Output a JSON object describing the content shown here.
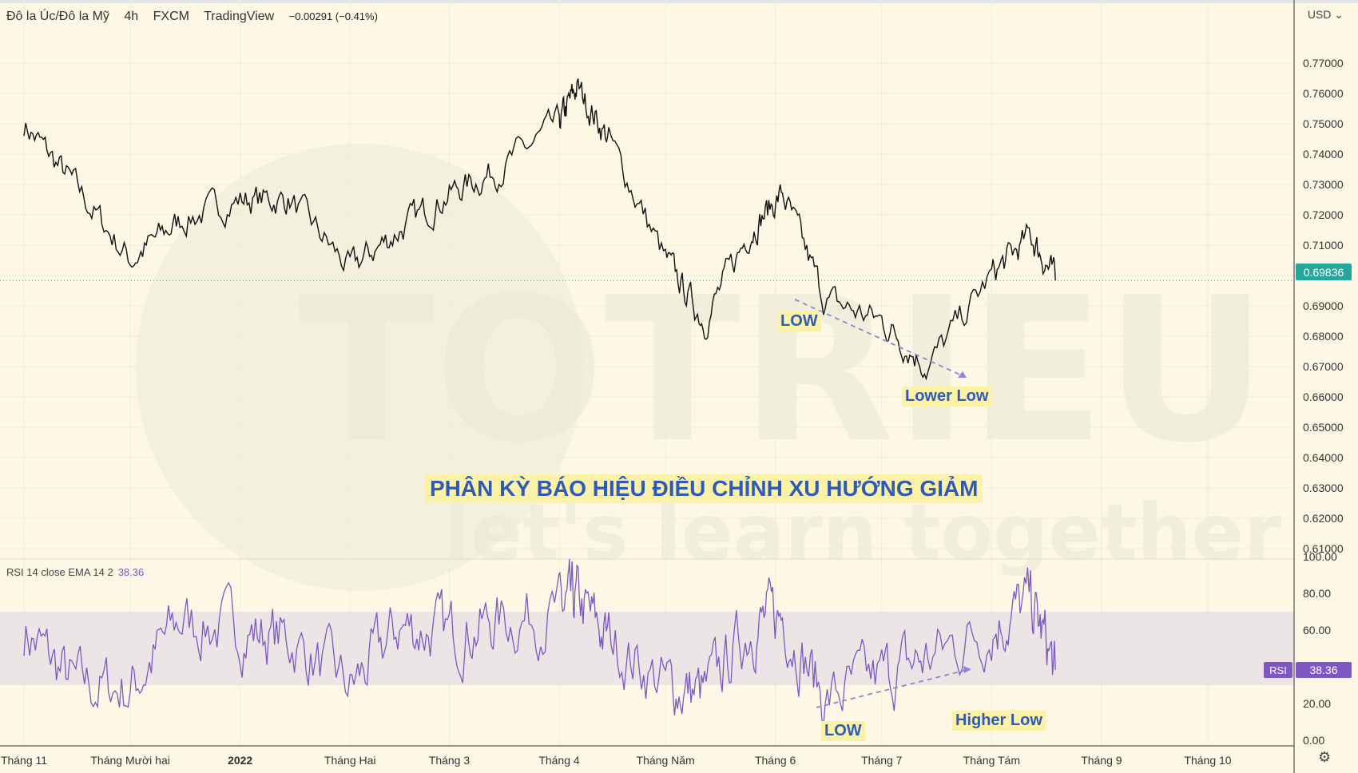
{
  "header": {
    "symbol": "Đô la Úc/Đô la Mỹ",
    "interval": "4h",
    "exchange": "FXCM",
    "source": "TradingView",
    "change": "−0.00291 (−0.41%)"
  },
  "currency_label": "USD",
  "rsi_header": {
    "label": "RSI 14 close EMA 14 2",
    "value": "38.36"
  },
  "annotations": {
    "low_price": "LOW",
    "lower_low": "Lower Low",
    "low_rsi": "LOW",
    "higher_low": "Higher Low",
    "title": "PHÂN KỲ BÁO HIỆU ĐIỀU CHỈNH XU HƯỚNG GIẢM"
  },
  "watermark": {
    "brand": "TOTRIEU",
    "slogan": "let's learn together"
  },
  "colors": {
    "background": "#fdf8e6",
    "price_line": "#111111",
    "rsi_line": "#7e57c2",
    "rsi_band": "#e9e2e6",
    "accent_label": "#2f5bb7",
    "highlight": "#fbf2a8",
    "last_price_badge": "#26a69a"
  },
  "chart_data": [
    {
      "type": "line",
      "series": [
        {
          "name": "AUD/USD",
          "x": [
            "2021-11-01",
            "2021-11-15",
            "2021-12-01",
            "2021-12-15",
            "2022-01-01",
            "2022-01-15",
            "2022-02-01",
            "2022-02-15",
            "2022-03-01",
            "2022-03-15",
            "2022-04-01",
            "2022-04-06",
            "2022-04-15",
            "2022-05-01",
            "2022-05-12",
            "2022-05-25",
            "2022-06-03",
            "2022-06-15",
            "2022-07-01",
            "2022-07-14",
            "2022-08-01",
            "2022-08-12",
            "2022-08-19"
          ],
          "values": [
            0.75,
            0.73,
            0.705,
            0.718,
            0.725,
            0.725,
            0.702,
            0.715,
            0.727,
            0.735,
            0.75,
            0.762,
            0.745,
            0.705,
            0.685,
            0.715,
            0.727,
            0.692,
            0.685,
            0.67,
            0.7,
            0.713,
            0.6984
          ]
        }
      ],
      "ylim": [
        0.61,
        0.775
      ],
      "y_ticks": [
        "0.77000",
        "0.76000",
        "0.75000",
        "0.74000",
        "0.73000",
        "0.72000",
        "0.71000",
        "0.70000",
        "0.69000",
        "0.68000",
        "0.67000",
        "0.66000",
        "0.65000",
        "0.64000",
        "0.63000",
        "0.62000",
        "0.61000"
      ],
      "last_price": "0.69836",
      "x_tick_labels": [
        "Tháng 11",
        "Tháng Mười hai",
        "2022",
        "Tháng Hai",
        "Tháng 3",
        "Tháng 4",
        "Tháng Năm",
        "Tháng 6",
        "Tháng 7",
        "Tháng Tám",
        "Tháng 9",
        "Tháng 10"
      ],
      "grid": true
    },
    {
      "type": "line",
      "series": [
        {
          "name": "RSI",
          "x": [
            "2021-11-01",
            "2021-11-15",
            "2021-12-01",
            "2021-12-15",
            "2022-01-01",
            "2022-01-15",
            "2022-02-01",
            "2022-02-15",
            "2022-03-01",
            "2022-03-15",
            "2022-04-01",
            "2022-04-06",
            "2022-04-15",
            "2022-05-01",
            "2022-05-12",
            "2022-05-25",
            "2022-06-03",
            "2022-06-15",
            "2022-07-01",
            "2022-07-14",
            "2022-08-01",
            "2022-08-12",
            "2022-08-19"
          ],
          "values": [
            60,
            30,
            28,
            65,
            60,
            55,
            28,
            62,
            58,
            65,
            70,
            75,
            55,
            30,
            25,
            62,
            68,
            22,
            35,
            45,
            62,
            75,
            38.36
          ]
        }
      ],
      "ylim": [
        0,
        100
      ],
      "band": [
        30,
        70
      ],
      "y_ticks": [
        "100.00",
        "80.00",
        "60.00",
        "20.00",
        "0.00"
      ],
      "last_value": "38.36",
      "last_label": "RSI"
    }
  ]
}
